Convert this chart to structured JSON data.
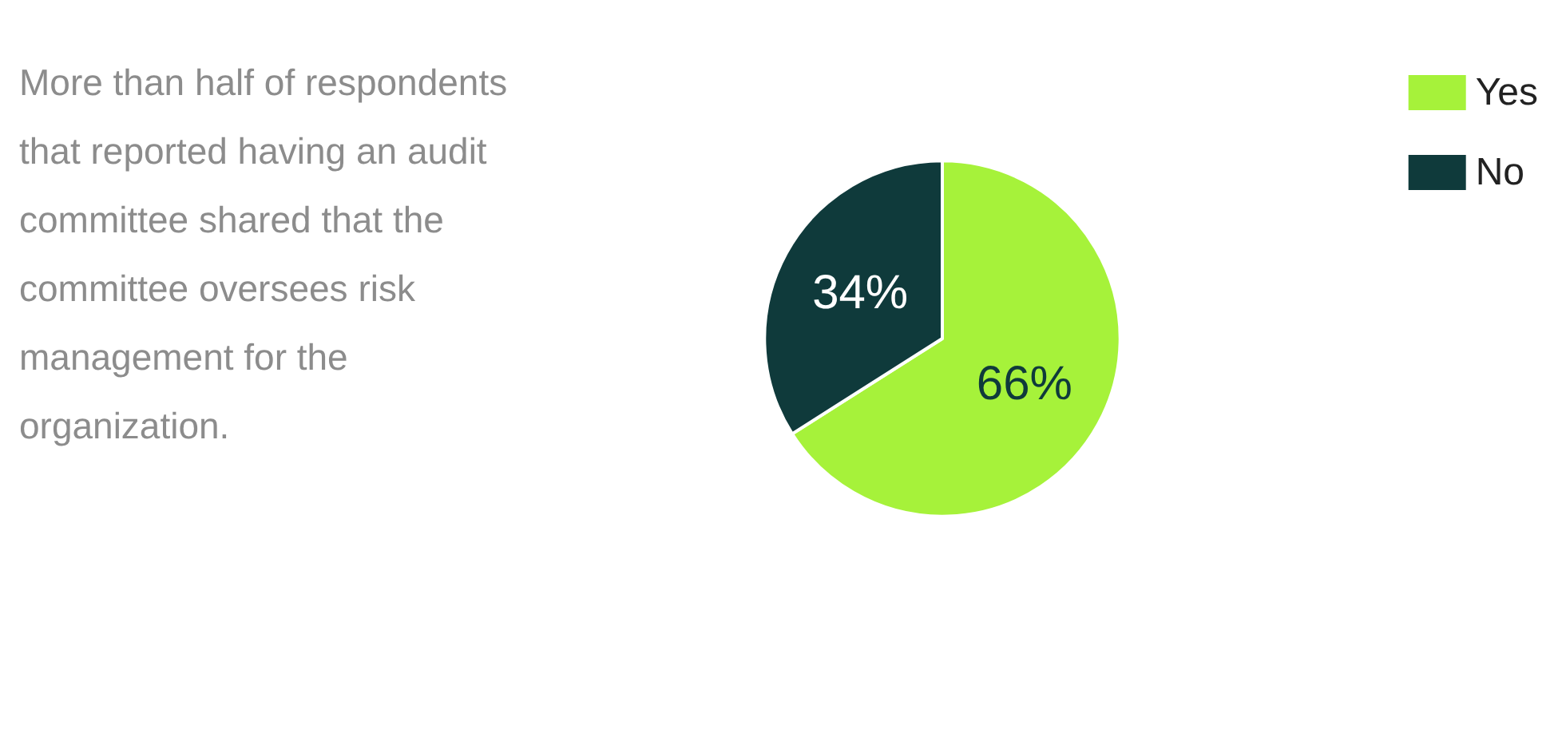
{
  "chart_data": {
    "type": "pie",
    "categories": [
      "Yes",
      "No"
    ],
    "values": [
      66,
      34
    ],
    "colors": [
      "#a6f23a",
      "#0f3a3b"
    ],
    "value_labels": [
      "66%",
      "34%"
    ],
    "legend": "top right",
    "annotations": [
      "More than half of respondents that reported having an audit committee shared that the committee oversees risk management for the organization."
    ]
  }
}
